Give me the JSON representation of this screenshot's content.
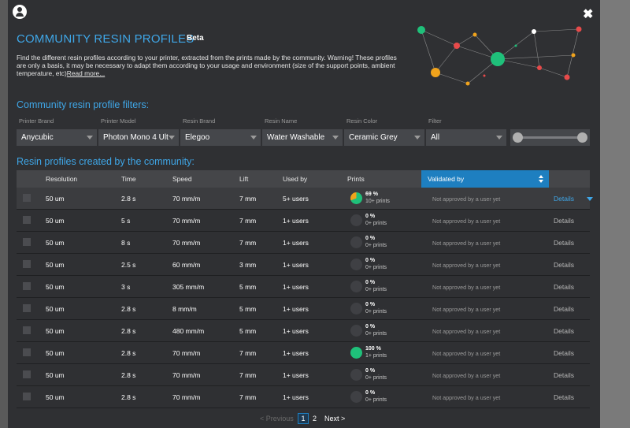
{
  "header": {
    "title": "COMMUNITY RESIN PROFILES",
    "badge": "Beta",
    "description": "Find the different resin profiles according to your printer, extracted from the prints made by the community. Warning! These profiles are only a basis, it may be necessary to adapt them according to your usage and environment (size of the support points, ambient temperature, etc)",
    "read_more": "Read more..."
  },
  "filters": {
    "section_title": "Community resin profile filters:",
    "fields": [
      {
        "label": "Printer Brand",
        "value": "Anycubic"
      },
      {
        "label": "Printer Model",
        "value": "Photon Mono 4 Ult"
      },
      {
        "label": "Resin Brand",
        "value": "Elegoo"
      },
      {
        "label": "Resin Name",
        "value": "Water Washable"
      },
      {
        "label": "Resin Color",
        "value": "Ceramic Grey"
      },
      {
        "label": "Filter",
        "value": "All"
      }
    ]
  },
  "table": {
    "section_title": "Resin profiles created by the community:",
    "columns": {
      "resolution": "Resolution",
      "time": "Time",
      "speed": "Speed",
      "lift": "Lift",
      "used_by": "Used by",
      "prints": "Prints",
      "validated_by": "Validated by"
    },
    "details_label": "Details",
    "rows": [
      {
        "resolution": "50 um",
        "time": "2.8 s",
        "speed": "70 mm/m",
        "lift": "7 mm",
        "used_by": "5+ users",
        "pct": "69 %",
        "prints": "10+ prints",
        "success": 0.69,
        "validated": "Not approved by a user yet"
      },
      {
        "resolution": "50 um",
        "time": "5 s",
        "speed": "70 mm/m",
        "lift": "7 mm",
        "used_by": "1+ users",
        "pct": "0 %",
        "prints": "0+ prints",
        "success": 0,
        "validated": "Not approved by a user yet"
      },
      {
        "resolution": "50 um",
        "time": "8 s",
        "speed": "70 mm/m",
        "lift": "7 mm",
        "used_by": "1+ users",
        "pct": "0 %",
        "prints": "0+ prints",
        "success": 0,
        "validated": "Not approved by a user yet"
      },
      {
        "resolution": "50 um",
        "time": "2.5 s",
        "speed": "60 mm/m",
        "lift": "3 mm",
        "used_by": "1+ users",
        "pct": "0 %",
        "prints": "0+ prints",
        "success": 0,
        "validated": "Not approved by a user yet"
      },
      {
        "resolution": "50 um",
        "time": "3 s",
        "speed": "305 mm/m",
        "lift": "5 mm",
        "used_by": "1+ users",
        "pct": "0 %",
        "prints": "0+ prints",
        "success": 0,
        "validated": "Not approved by a user yet"
      },
      {
        "resolution": "50 um",
        "time": "2.8 s",
        "speed": "8 mm/m",
        "lift": "5 mm",
        "used_by": "1+ users",
        "pct": "0 %",
        "prints": "0+ prints",
        "success": 0,
        "validated": "Not approved by a user yet"
      },
      {
        "resolution": "50 um",
        "time": "2.8 s",
        "speed": "480 mm/m",
        "lift": "5 mm",
        "used_by": "1+ users",
        "pct": "0 %",
        "prints": "0+ prints",
        "success": 0,
        "validated": "Not approved by a user yet"
      },
      {
        "resolution": "50 um",
        "time": "2.8 s",
        "speed": "70 mm/m",
        "lift": "7 mm",
        "used_by": "1+ users",
        "pct": "100 %",
        "prints": "1+ prints",
        "success": 1,
        "validated": "Not approved by a user yet"
      },
      {
        "resolution": "50 um",
        "time": "2.8 s",
        "speed": "70 mm/m",
        "lift": "7 mm",
        "used_by": "1+ users",
        "pct": "0 %",
        "prints": "0+ prints",
        "success": 0,
        "validated": "Not approved by a user yet"
      },
      {
        "resolution": "50 um",
        "time": "2.8 s",
        "speed": "70 mm/m",
        "lift": "7 mm",
        "used_by": "1+ users",
        "pct": "0 %",
        "prints": "0+ prints",
        "success": 0,
        "validated": "Not approved by a user yet"
      }
    ]
  },
  "pagination": {
    "previous": "< Previous",
    "pages": [
      "1",
      "2"
    ],
    "current": "1",
    "next": "Next >"
  },
  "colors": {
    "accent": "#3fa7e8",
    "success": "#1fc07a",
    "warning": "#f0a31c",
    "background": "#2f3033"
  }
}
